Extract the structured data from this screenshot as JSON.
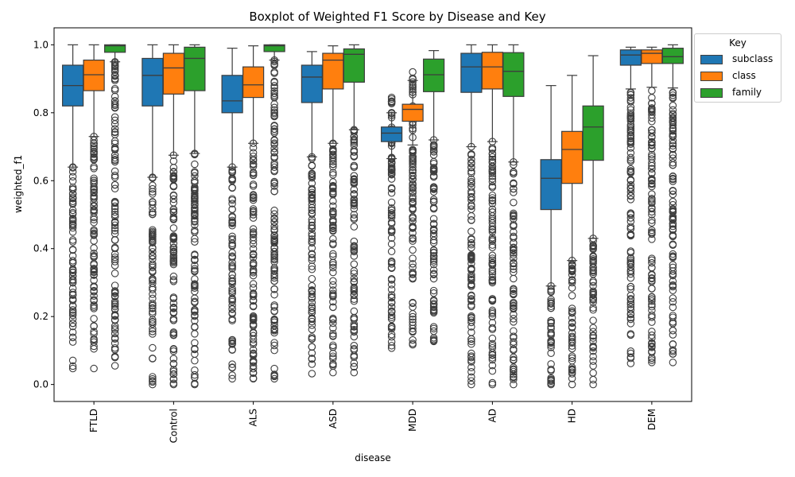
{
  "chart_data": {
    "type": "box",
    "title": "Boxplot of Weighted F1 Score by Disease and Key",
    "xlabel": "disease",
    "ylabel": "weighted_f1",
    "ylim": [
      -0.05,
      1.05
    ],
    "yticks": [
      "0.0",
      "0.2",
      "0.4",
      "0.6",
      "0.8",
      "1.0"
    ],
    "categories": [
      "FTLD",
      "Control",
      "ALS",
      "ASD",
      "MDD",
      "AD",
      "HD",
      "DEM"
    ],
    "legend": {
      "title": "Key",
      "position": "upper-right-outside"
    },
    "grid": false,
    "series": [
      {
        "name": "subclass",
        "color": "#1f77b4",
        "boxes": [
          {
            "whisker_low": 0.64,
            "q1": 0.82,
            "median": 0.88,
            "q3": 0.94,
            "whisker_high": 1.0,
            "outlier_range": [
              0.047,
              0.64
            ]
          },
          {
            "whisker_low": 0.61,
            "q1": 0.82,
            "median": 0.91,
            "q3": 0.96,
            "whisker_high": 1.0,
            "outlier_range": [
              0.0,
              0.61
            ]
          },
          {
            "whisker_low": 0.64,
            "q1": 0.8,
            "median": 0.835,
            "q3": 0.91,
            "whisker_high": 0.99,
            "outlier_range": [
              0.017,
              0.64
            ]
          },
          {
            "whisker_low": 0.67,
            "q1": 0.83,
            "median": 0.905,
            "q3": 0.94,
            "whisker_high": 0.98,
            "outlier_range": [
              0.032,
              0.67
            ]
          },
          {
            "whisker_low": 0.665,
            "q1": 0.715,
            "median": 0.74,
            "q3": 0.758,
            "whisker_high": 0.8,
            "outlier_range": [
              0.107,
              0.845
            ]
          },
          {
            "whisker_low": 0.7,
            "q1": 0.86,
            "median": 0.935,
            "q3": 0.975,
            "whisker_high": 1.0,
            "outlier_range": [
              0.0,
              0.7
            ]
          },
          {
            "whisker_low": 0.29,
            "q1": 0.515,
            "median": 0.607,
            "q3": 0.662,
            "whisker_high": 0.88,
            "outlier_range": [
              0.0,
              0.29
            ]
          },
          {
            "whisker_low": 0.87,
            "q1": 0.94,
            "median": 0.97,
            "q3": 0.985,
            "whisker_high": 0.993,
            "outlier_range": [
              0.062,
              0.86
            ]
          }
        ]
      },
      {
        "name": "class",
        "color": "#ff7f0e",
        "boxes": [
          {
            "whisker_low": 0.73,
            "q1": 0.865,
            "median": 0.912,
            "q3": 0.955,
            "whisker_high": 1.0,
            "outlier_range": [
              0.047,
              0.73
            ]
          },
          {
            "whisker_low": 0.675,
            "q1": 0.855,
            "median": 0.932,
            "q3": 0.975,
            "whisker_high": 1.0,
            "outlier_range": [
              0.0,
              0.675
            ]
          },
          {
            "whisker_low": 0.71,
            "q1": 0.845,
            "median": 0.882,
            "q3": 0.935,
            "whisker_high": 0.997,
            "outlier_range": [
              0.017,
              0.71
            ]
          },
          {
            "whisker_low": 0.71,
            "q1": 0.87,
            "median": 0.955,
            "q3": 0.975,
            "whisker_high": 0.997,
            "outlier_range": [
              0.035,
              0.71
            ]
          },
          {
            "whisker_low": 0.705,
            "q1": 0.775,
            "median": 0.81,
            "q3": 0.825,
            "whisker_high": 0.895,
            "outlier_range": [
              0.117,
              0.92
            ]
          },
          {
            "whisker_low": 0.715,
            "q1": 0.87,
            "median": 0.935,
            "q3": 0.978,
            "whisker_high": 1.0,
            "outlier_range": [
              0.0,
              0.715
            ]
          },
          {
            "whisker_low": 0.365,
            "q1": 0.592,
            "median": 0.692,
            "q3": 0.745,
            "whisker_high": 0.91,
            "outlier_range": [
              0.0,
              0.365
            ]
          },
          {
            "whisker_low": 0.875,
            "q1": 0.945,
            "median": 0.975,
            "q3": 0.985,
            "whisker_high": 0.993,
            "outlier_range": [
              0.065,
              0.865
            ]
          }
        ]
      },
      {
        "name": "family",
        "color": "#2ca02c",
        "boxes": [
          {
            "whisker_low": 0.95,
            "q1": 0.978,
            "median": 0.997,
            "q3": 1.0,
            "whisker_high": 1.0,
            "outlier_range": [
              0.055,
              0.95
            ]
          },
          {
            "whisker_low": 0.68,
            "q1": 0.865,
            "median": 0.96,
            "q3": 0.993,
            "whisker_high": 1.0,
            "outlier_range": [
              0.0,
              0.68
            ]
          },
          {
            "whisker_low": 0.955,
            "q1": 0.98,
            "median": 0.997,
            "q3": 1.0,
            "whisker_high": 1.0,
            "outlier_range": [
              0.017,
              0.955
            ]
          },
          {
            "whisker_low": 0.75,
            "q1": 0.89,
            "median": 0.972,
            "q3": 0.988,
            "whisker_high": 1.0,
            "outlier_range": [
              0.035,
              0.75
            ]
          },
          {
            "whisker_low": 0.72,
            "q1": 0.862,
            "median": 0.912,
            "q3": 0.958,
            "whisker_high": 0.983,
            "outlier_range": [
              0.127,
              0.72
            ]
          },
          {
            "whisker_low": 0.655,
            "q1": 0.848,
            "median": 0.922,
            "q3": 0.977,
            "whisker_high": 1.0,
            "outlier_range": [
              0.0,
              0.655
            ]
          },
          {
            "whisker_low": 0.43,
            "q1": 0.66,
            "median": 0.758,
            "q3": 0.82,
            "whisker_high": 0.968,
            "outlier_range": [
              0.0,
              0.43
            ]
          },
          {
            "whisker_low": 0.873,
            "q1": 0.945,
            "median": 0.965,
            "q3": 0.99,
            "whisker_high": 1.0,
            "outlier_range": [
              0.065,
              0.86
            ]
          }
        ]
      }
    ]
  }
}
